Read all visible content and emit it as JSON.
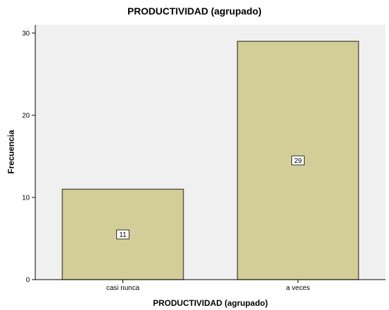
{
  "chart_data": {
    "type": "bar",
    "title": "PRODUCTIVIDAD (agrupado)",
    "xlabel": "PRODUCTIVIDAD (agrupado)",
    "ylabel": "Frecuencia",
    "categories": [
      "casi nunca",
      "a veces"
    ],
    "values": [
      11,
      29
    ],
    "data_labels": [
      "11",
      "29"
    ],
    "ylim": [
      0,
      31
    ],
    "yticks": [
      0,
      10,
      20,
      30
    ],
    "ytick_labels": [
      "0",
      "10",
      "20",
      "30"
    ],
    "grid": false,
    "legend": "none",
    "colors": {
      "bar_fill": "#d3ce98",
      "bar_stroke": "#3a3a2a",
      "plot_background": "#f0f0f0",
      "axis": "#000000",
      "data_label_box": "#ffffff"
    }
  }
}
